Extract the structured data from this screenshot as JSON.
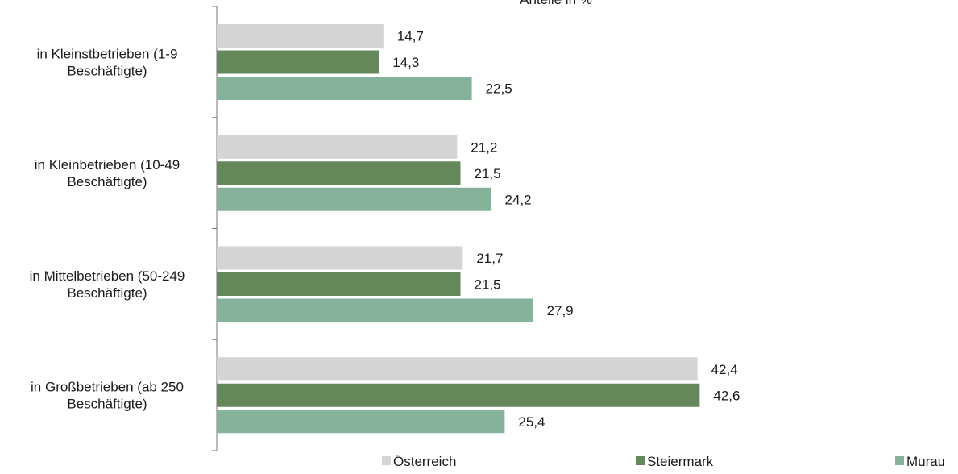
{
  "chart_data": {
    "type": "bar",
    "orientation": "horizontal",
    "title": "Anteile in %",
    "categories": [
      [
        "in Kleinstbetrieben (1-9",
        "Beschäftigte)"
      ],
      [
        "in Kleinbetrieben (10-49",
        "Beschäftigte)"
      ],
      [
        "in Mittelbetrieben (50-249",
        "Beschäftigte)"
      ],
      [
        "in Großbetrieben (ab 250",
        "Beschäftigte)"
      ]
    ],
    "series": [
      {
        "name": "Österreich",
        "color": "#d4d4d4",
        "values": [
          14.7,
          21.2,
          21.7,
          42.4
        ],
        "labels": [
          "14,7",
          "21,2",
          "21,7",
          "42,4"
        ]
      },
      {
        "name": "Steiermark",
        "color": "#64885a",
        "values": [
          14.3,
          21.5,
          21.5,
          42.6
        ],
        "labels": [
          "14,3",
          "21,5",
          "21,5",
          "42,6"
        ]
      },
      {
        "name": "Murau",
        "color": "#86b29c",
        "values": [
          22.5,
          24.2,
          27.9,
          25.4
        ],
        "labels": [
          "22,5",
          "24,2",
          "27,9",
          "25,4"
        ]
      }
    ],
    "xlim": [
      0,
      43
    ],
    "grid": false,
    "legend_position": "bottom"
  }
}
